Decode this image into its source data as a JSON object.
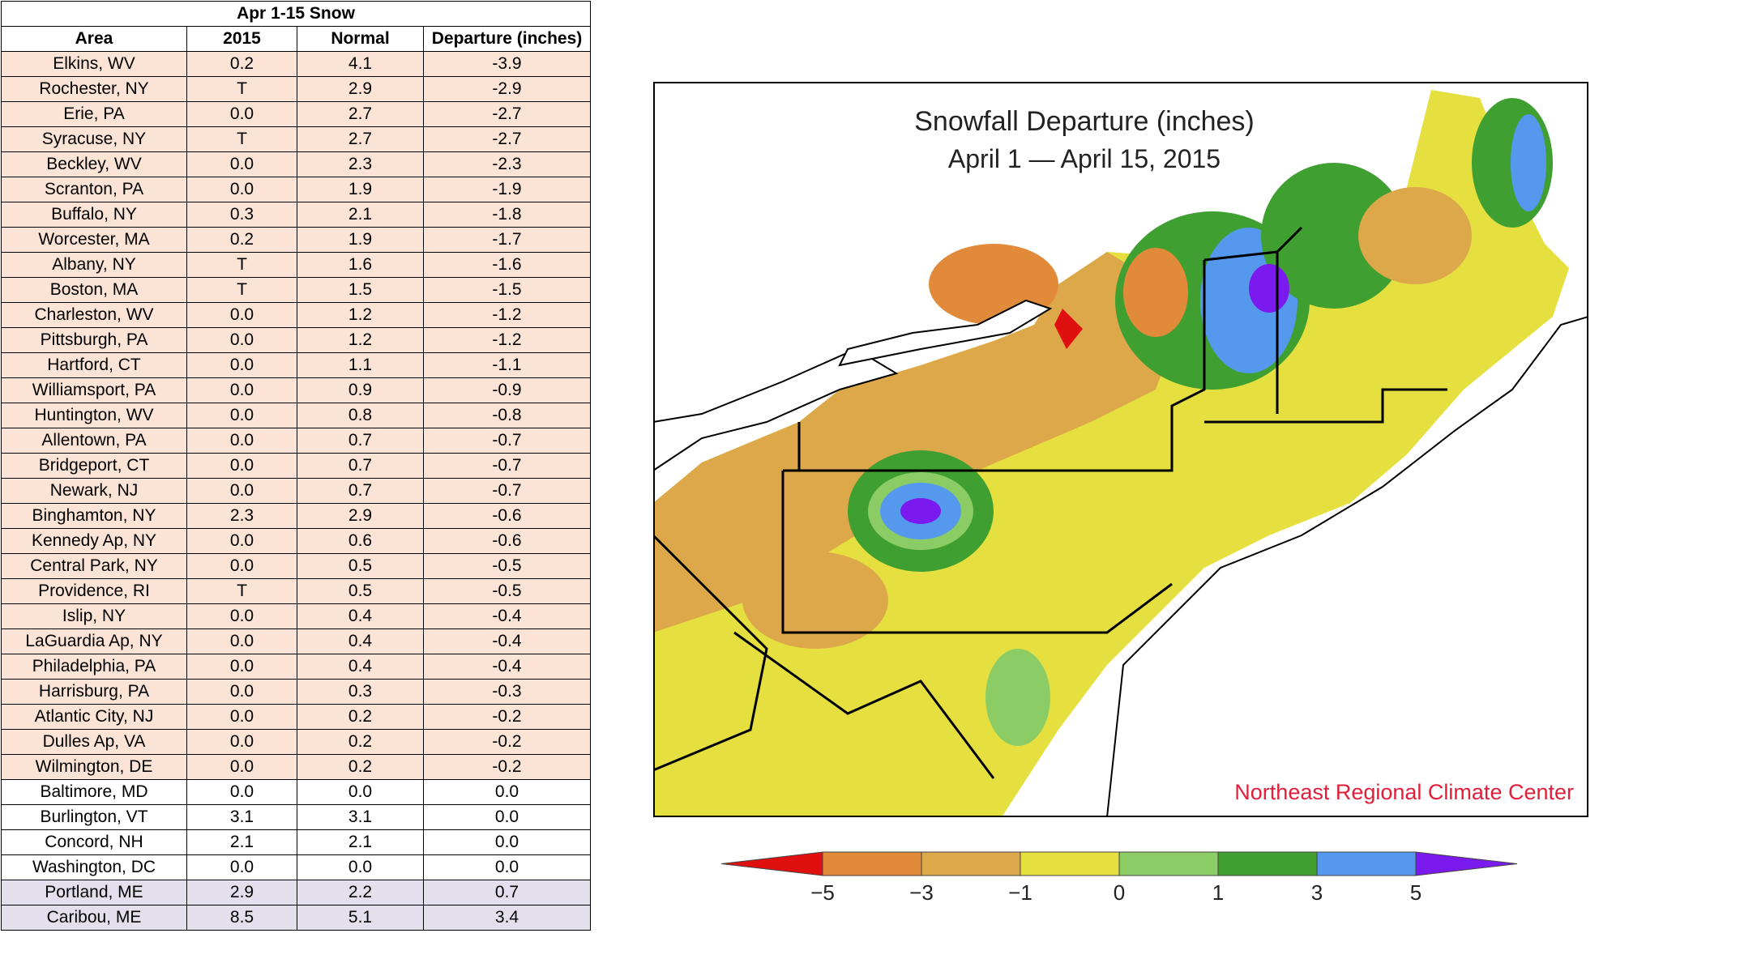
{
  "table": {
    "title": "Apr 1-15 Snow",
    "headers": [
      "Area",
      "2015",
      "Normal",
      "Departure (inches)"
    ],
    "rows": [
      [
        "Elkins, WV",
        "0.2",
        "4.1",
        "-3.9"
      ],
      [
        "Rochester, NY",
        "T",
        "2.9",
        "-2.9"
      ],
      [
        "Erie, PA",
        "0.0",
        "2.7",
        "-2.7"
      ],
      [
        "Syracuse, NY",
        "T",
        "2.7",
        "-2.7"
      ],
      [
        "Beckley, WV",
        "0.0",
        "2.3",
        "-2.3"
      ],
      [
        "Scranton, PA",
        "0.0",
        "1.9",
        "-1.9"
      ],
      [
        "Buffalo, NY",
        "0.3",
        "2.1",
        "-1.8"
      ],
      [
        "Worcester, MA",
        "0.2",
        "1.9",
        "-1.7"
      ],
      [
        "Albany, NY",
        "T",
        "1.6",
        "-1.6"
      ],
      [
        "Boston, MA",
        "T",
        "1.5",
        "-1.5"
      ],
      [
        "Charleston, WV",
        "0.0",
        "1.2",
        "-1.2"
      ],
      [
        "Pittsburgh, PA",
        "0.0",
        "1.2",
        "-1.2"
      ],
      [
        "Hartford, CT",
        "0.0",
        "1.1",
        "-1.1"
      ],
      [
        "Williamsport, PA",
        "0.0",
        "0.9",
        "-0.9"
      ],
      [
        "Huntington, WV",
        "0.0",
        "0.8",
        "-0.8"
      ],
      [
        "Allentown, PA",
        "0.0",
        "0.7",
        "-0.7"
      ],
      [
        "Bridgeport, CT",
        "0.0",
        "0.7",
        "-0.7"
      ],
      [
        "Newark, NJ",
        "0.0",
        "0.7",
        "-0.7"
      ],
      [
        "Binghamton, NY",
        "2.3",
        "2.9",
        "-0.6"
      ],
      [
        "Kennedy Ap, NY",
        "0.0",
        "0.6",
        "-0.6"
      ],
      [
        "Central Park, NY",
        "0.0",
        "0.5",
        "-0.5"
      ],
      [
        "Providence, RI",
        "T",
        "0.5",
        "-0.5"
      ],
      [
        "Islip, NY",
        "0.0",
        "0.4",
        "-0.4"
      ],
      [
        "LaGuardia Ap, NY",
        "0.0",
        "0.4",
        "-0.4"
      ],
      [
        "Philadelphia, PA",
        "0.0",
        "0.4",
        "-0.4"
      ],
      [
        "Harrisburg, PA",
        "0.0",
        "0.3",
        "-0.3"
      ],
      [
        "Atlantic City, NJ",
        "0.0",
        "0.2",
        "-0.2"
      ],
      [
        "Dulles Ap, VA",
        "0.0",
        "0.2",
        "-0.2"
      ],
      [
        "Wilmington, DE",
        "0.0",
        "0.2",
        "-0.2"
      ],
      [
        "Baltimore, MD",
        "0.0",
        "0.0",
        "0.0"
      ],
      [
        "Burlington, VT",
        "3.1",
        "3.1",
        "0.0"
      ],
      [
        "Concord, NH",
        "2.1",
        "2.1",
        "0.0"
      ],
      [
        "Washington, DC",
        "0.0",
        "0.0",
        "0.0"
      ],
      [
        "Portland, ME",
        "2.9",
        "2.2",
        "0.7"
      ],
      [
        "Caribou, ME",
        "8.5",
        "5.1",
        "3.4"
      ]
    ]
  },
  "map": {
    "title": "Snowfall Departure (inches)",
    "subtitle": "April 1 — April 15, 2015",
    "credit": "Northeast Regional Climate Center",
    "colorbar_labels": [
      "−5",
      "−3",
      "−1",
      "0",
      "1",
      "3",
      "5"
    ]
  }
}
